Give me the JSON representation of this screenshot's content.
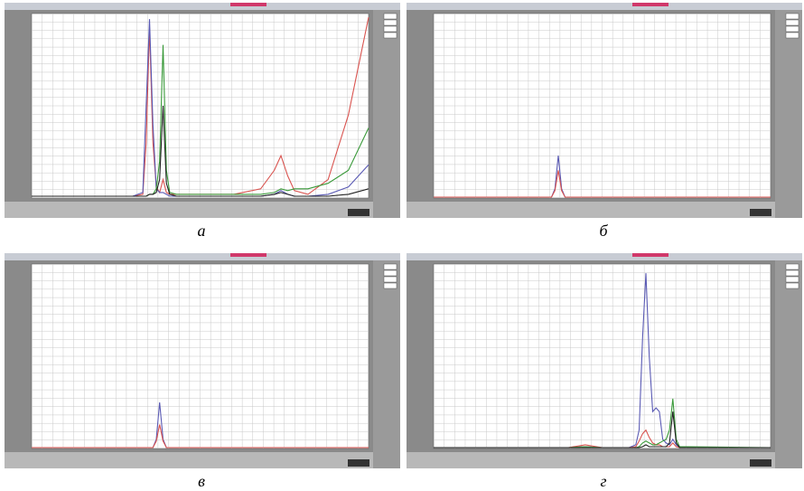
{
  "chart_data": [
    {
      "type": "line",
      "caption": "а",
      "xlim": [
        0,
        100
      ],
      "ylim": [
        0,
        1
      ],
      "grid": true,
      "x": [
        0,
        10,
        20,
        30,
        33,
        34,
        35,
        36,
        37,
        38,
        39,
        40,
        41,
        43,
        50,
        60,
        68,
        72,
        74,
        76,
        78,
        82,
        88,
        94,
        100
      ],
      "series": [
        {
          "color": "#d9534f",
          "values": [
            0.01,
            0.01,
            0.01,
            0.01,
            0.02,
            0.3,
            0.92,
            0.3,
            0.06,
            0.03,
            0.1,
            0.03,
            0.02,
            0.02,
            0.02,
            0.02,
            0.05,
            0.15,
            0.23,
            0.12,
            0.04,
            0.02,
            0.1,
            0.45,
            0.98
          ]
        },
        {
          "color": "#5a5ab4",
          "values": [
            0.01,
            0.01,
            0.01,
            0.01,
            0.03,
            0.5,
            0.97,
            0.4,
            0.05,
            0.03,
            0.03,
            0.02,
            0.01,
            0.01,
            0.01,
            0.01,
            0.01,
            0.02,
            0.04,
            0.02,
            0.01,
            0.01,
            0.02,
            0.06,
            0.18
          ]
        },
        {
          "color": "#3a9a3a",
          "values": [
            0.01,
            0.01,
            0.01,
            0.01,
            0.01,
            0.01,
            0.02,
            0.02,
            0.05,
            0.2,
            0.83,
            0.15,
            0.03,
            0.02,
            0.02,
            0.02,
            0.02,
            0.03,
            0.05,
            0.04,
            0.05,
            0.05,
            0.08,
            0.15,
            0.38
          ]
        },
        {
          "color": "#222222",
          "values": [
            0.01,
            0.01,
            0.01,
            0.01,
            0.01,
            0.01,
            0.02,
            0.02,
            0.03,
            0.1,
            0.5,
            0.08,
            0.02,
            0.01,
            0.01,
            0.01,
            0.01,
            0.02,
            0.03,
            0.02,
            0.01,
            0.01,
            0.01,
            0.02,
            0.05
          ]
        }
      ]
    },
    {
      "type": "line",
      "caption": "б",
      "xlim": [
        0,
        100
      ],
      "ylim": [
        0,
        1
      ],
      "grid": true,
      "x": [
        0,
        35,
        36,
        37,
        38,
        39,
        100
      ],
      "series": [
        {
          "color": "#5a5ab4",
          "values": [
            0.005,
            0.005,
            0.05,
            0.23,
            0.05,
            0.005,
            0.005
          ]
        },
        {
          "color": "#d9534f",
          "values": [
            0.005,
            0.005,
            0.04,
            0.15,
            0.04,
            0.005,
            0.005
          ]
        }
      ]
    },
    {
      "type": "line",
      "caption": "в",
      "xlim": [
        0,
        100
      ],
      "ylim": [
        0,
        1
      ],
      "grid": true,
      "x": [
        0,
        36,
        37,
        38,
        39,
        40,
        100
      ],
      "series": [
        {
          "color": "#5a5ab4",
          "values": [
            0.005,
            0.005,
            0.05,
            0.25,
            0.05,
            0.005,
            0.005
          ]
        },
        {
          "color": "#d9534f",
          "values": [
            0.005,
            0.005,
            0.04,
            0.13,
            0.04,
            0.005,
            0.005
          ]
        }
      ]
    },
    {
      "type": "line",
      "caption": "г",
      "xlim": [
        0,
        100
      ],
      "ylim": [
        0,
        1
      ],
      "grid": true,
      "x": [
        0,
        40,
        45,
        50,
        58,
        60,
        61,
        62,
        63,
        64,
        65,
        66,
        67,
        68,
        69,
        70,
        71,
        72,
        73,
        100
      ],
      "series": [
        {
          "color": "#5a5ab4",
          "values": [
            0.005,
            0.005,
            0.01,
            0.005,
            0.005,
            0.02,
            0.1,
            0.6,
            0.95,
            0.5,
            0.2,
            0.22,
            0.2,
            0.05,
            0.03,
            0.02,
            0.05,
            0.02,
            0.005,
            0.005
          ]
        },
        {
          "color": "#d9534f",
          "values": [
            0.005,
            0.005,
            0.02,
            0.005,
            0.005,
            0.01,
            0.04,
            0.08,
            0.1,
            0.06,
            0.03,
            0.02,
            0.02,
            0.01,
            0.01,
            0.01,
            0.03,
            0.01,
            0.005,
            0.005
          ]
        },
        {
          "color": "#3a9a3a",
          "values": [
            0.005,
            0.005,
            0.01,
            0.005,
            0.005,
            0.005,
            0.01,
            0.03,
            0.04,
            0.03,
            0.02,
            0.02,
            0.03,
            0.04,
            0.05,
            0.1,
            0.27,
            0.05,
            0.01,
            0.005
          ]
        },
        {
          "color": "#222222",
          "values": [
            0.005,
            0.005,
            0.005,
            0.005,
            0.005,
            0.005,
            0.005,
            0.01,
            0.02,
            0.01,
            0.01,
            0.01,
            0.01,
            0.01,
            0.01,
            0.03,
            0.2,
            0.03,
            0.005,
            0.005
          ]
        }
      ]
    }
  ]
}
